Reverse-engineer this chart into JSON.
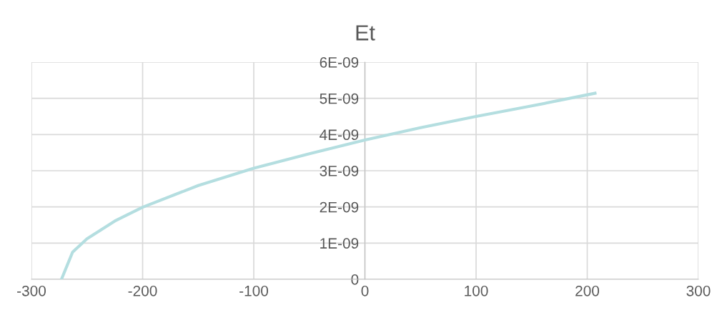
{
  "chart_data": {
    "type": "line",
    "title": "Et",
    "x": [
      -273,
      -263,
      -250,
      -225,
      -200,
      -150,
      -100,
      -50,
      0,
      50,
      100,
      150,
      207
    ],
    "series": [
      {
        "color": "#b4dee0",
        "values": [
          0,
          7.5e-10,
          1.12e-09,
          1.61e-09,
          1.99e-09,
          2.59e-09,
          3.07e-09,
          3.47e-09,
          3.85e-09,
          4.19e-09,
          4.5e-09,
          4.79e-09,
          5.14e-09
        ]
      }
    ],
    "xlim": [
      -300,
      300
    ],
    "xticks": [
      -300,
      -200,
      -100,
      0,
      100,
      200,
      300
    ],
    "ylim": [
      0,
      6e-09
    ],
    "yticks": [
      {
        "value": 0,
        "label": "0"
      },
      {
        "value": 1e-09,
        "label": "1E-09"
      },
      {
        "value": 2e-09,
        "label": "2E-09"
      },
      {
        "value": 3e-09,
        "label": "3E-09"
      },
      {
        "value": 4e-09,
        "label": "4E-09"
      },
      {
        "value": 5e-09,
        "label": "5E-09"
      },
      {
        "value": 6e-09,
        "label": "6E-09"
      }
    ],
    "grid": true,
    "marker": "none",
    "line_style": "solid",
    "legend": false
  }
}
